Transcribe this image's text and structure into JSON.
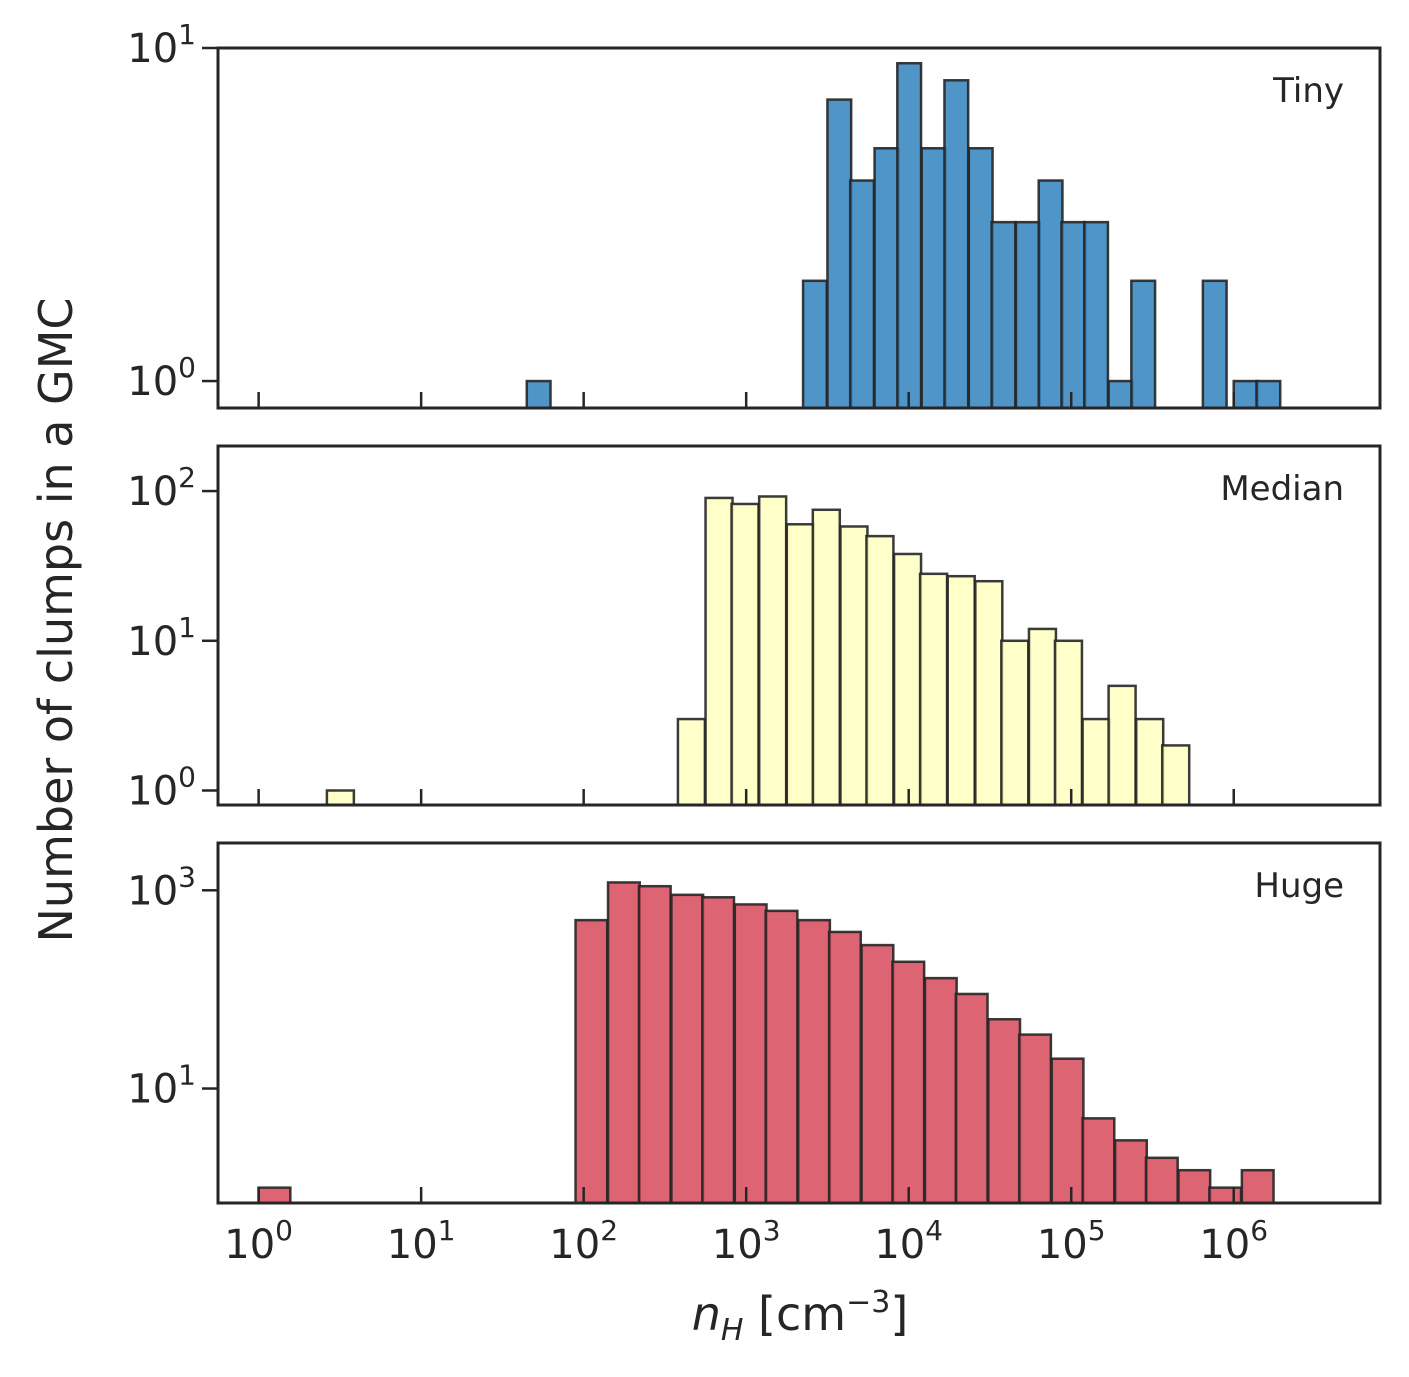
{
  "chart_data": {
    "type": "bar",
    "figure": {
      "ylabel": "Number of clumps in a GMC",
      "xlabel": {
        "var": "n",
        "sub": "H",
        "unit_open": " [cm",
        "unit_exp": "−3",
        "unit_close": "]"
      },
      "x_scale": "log10",
      "xlim_log10": [
        -0.25,
        6.9
      ],
      "x_ticks": [
        {
          "base": "10",
          "exp": "0",
          "log10": 0
        },
        {
          "base": "10",
          "exp": "1",
          "log10": 1
        },
        {
          "base": "10",
          "exp": "2",
          "log10": 2
        },
        {
          "base": "10",
          "exp": "3",
          "log10": 3
        },
        {
          "base": "10",
          "exp": "4",
          "log10": 4
        },
        {
          "base": "10",
          "exp": "5",
          "log10": 5
        },
        {
          "base": "10",
          "exp": "6",
          "log10": 6
        }
      ]
    },
    "panels": [
      {
        "id": "tiny",
        "label": "Tiny",
        "color": "#3182bd",
        "y_scale": "log10",
        "ylim": [
          0.83,
          10.0
        ],
        "y_ticks": [
          {
            "base": "10",
            "exp": "0",
            "value": 1
          },
          {
            "base": "10",
            "exp": "1",
            "value": 10
          }
        ],
        "bin_width_dex": 0.146,
        "bins_log10_left": [
          1.65,
          3.35,
          3.5,
          3.64,
          3.79,
          3.93,
          4.08,
          4.22,
          4.37,
          4.51,
          4.66,
          4.8,
          4.94,
          5.08,
          5.23,
          5.37,
          5.81,
          6.0,
          6.14
        ],
        "counts": [
          1,
          2,
          7,
          4,
          5,
          9,
          5,
          8,
          5,
          3,
          3,
          4,
          3,
          3,
          1,
          2,
          2,
          1,
          1
        ]
      },
      {
        "id": "median",
        "label": "Median",
        "color": "#ffffbf",
        "y_scale": "log10",
        "ylim": [
          0.8,
          200
        ],
        "y_ticks": [
          {
            "base": "10",
            "exp": "0",
            "value": 1
          },
          {
            "base": "10",
            "exp": "1",
            "value": 10
          },
          {
            "base": "10",
            "exp": "2",
            "value": 100
          }
        ],
        "bin_width_dex": 0.166,
        "bins_log10_left": [
          0.42,
          2.58,
          2.75,
          2.91,
          3.08,
          3.25,
          3.41,
          3.58,
          3.74,
          3.91,
          4.07,
          4.24,
          4.41,
          4.57,
          4.74,
          4.9,
          5.07,
          5.23,
          5.4,
          5.56
        ],
        "counts": [
          1,
          3,
          90,
          82,
          92,
          60,
          75,
          58,
          50,
          38,
          28,
          27,
          25,
          10,
          12,
          10,
          3,
          5,
          3,
          2
        ]
      },
      {
        "id": "huge",
        "label": "Huge",
        "color": "#d6495b",
        "y_scale": "log10",
        "ylim": [
          0.7,
          3000
        ],
        "y_ticks": [
          {
            "base": "10",
            "exp": "1",
            "value": 10
          },
          {
            "base": "10",
            "exp": "3",
            "value": 1000
          }
        ],
        "bin_width_dex": 0.195,
        "bins_log10_left": [
          0.0,
          1.95,
          2.15,
          2.34,
          2.54,
          2.73,
          2.93,
          3.12,
          3.32,
          3.51,
          3.71,
          3.9,
          4.1,
          4.29,
          4.49,
          4.68,
          4.88,
          5.07,
          5.27,
          5.46,
          5.66,
          5.85,
          6.05
        ],
        "counts": [
          1,
          500,
          1200,
          1100,
          900,
          850,
          720,
          620,
          500,
          380,
          280,
          190,
          130,
          90,
          50,
          35,
          20,
          5,
          3,
          2,
          1.5,
          1,
          1.5
        ]
      }
    ]
  }
}
